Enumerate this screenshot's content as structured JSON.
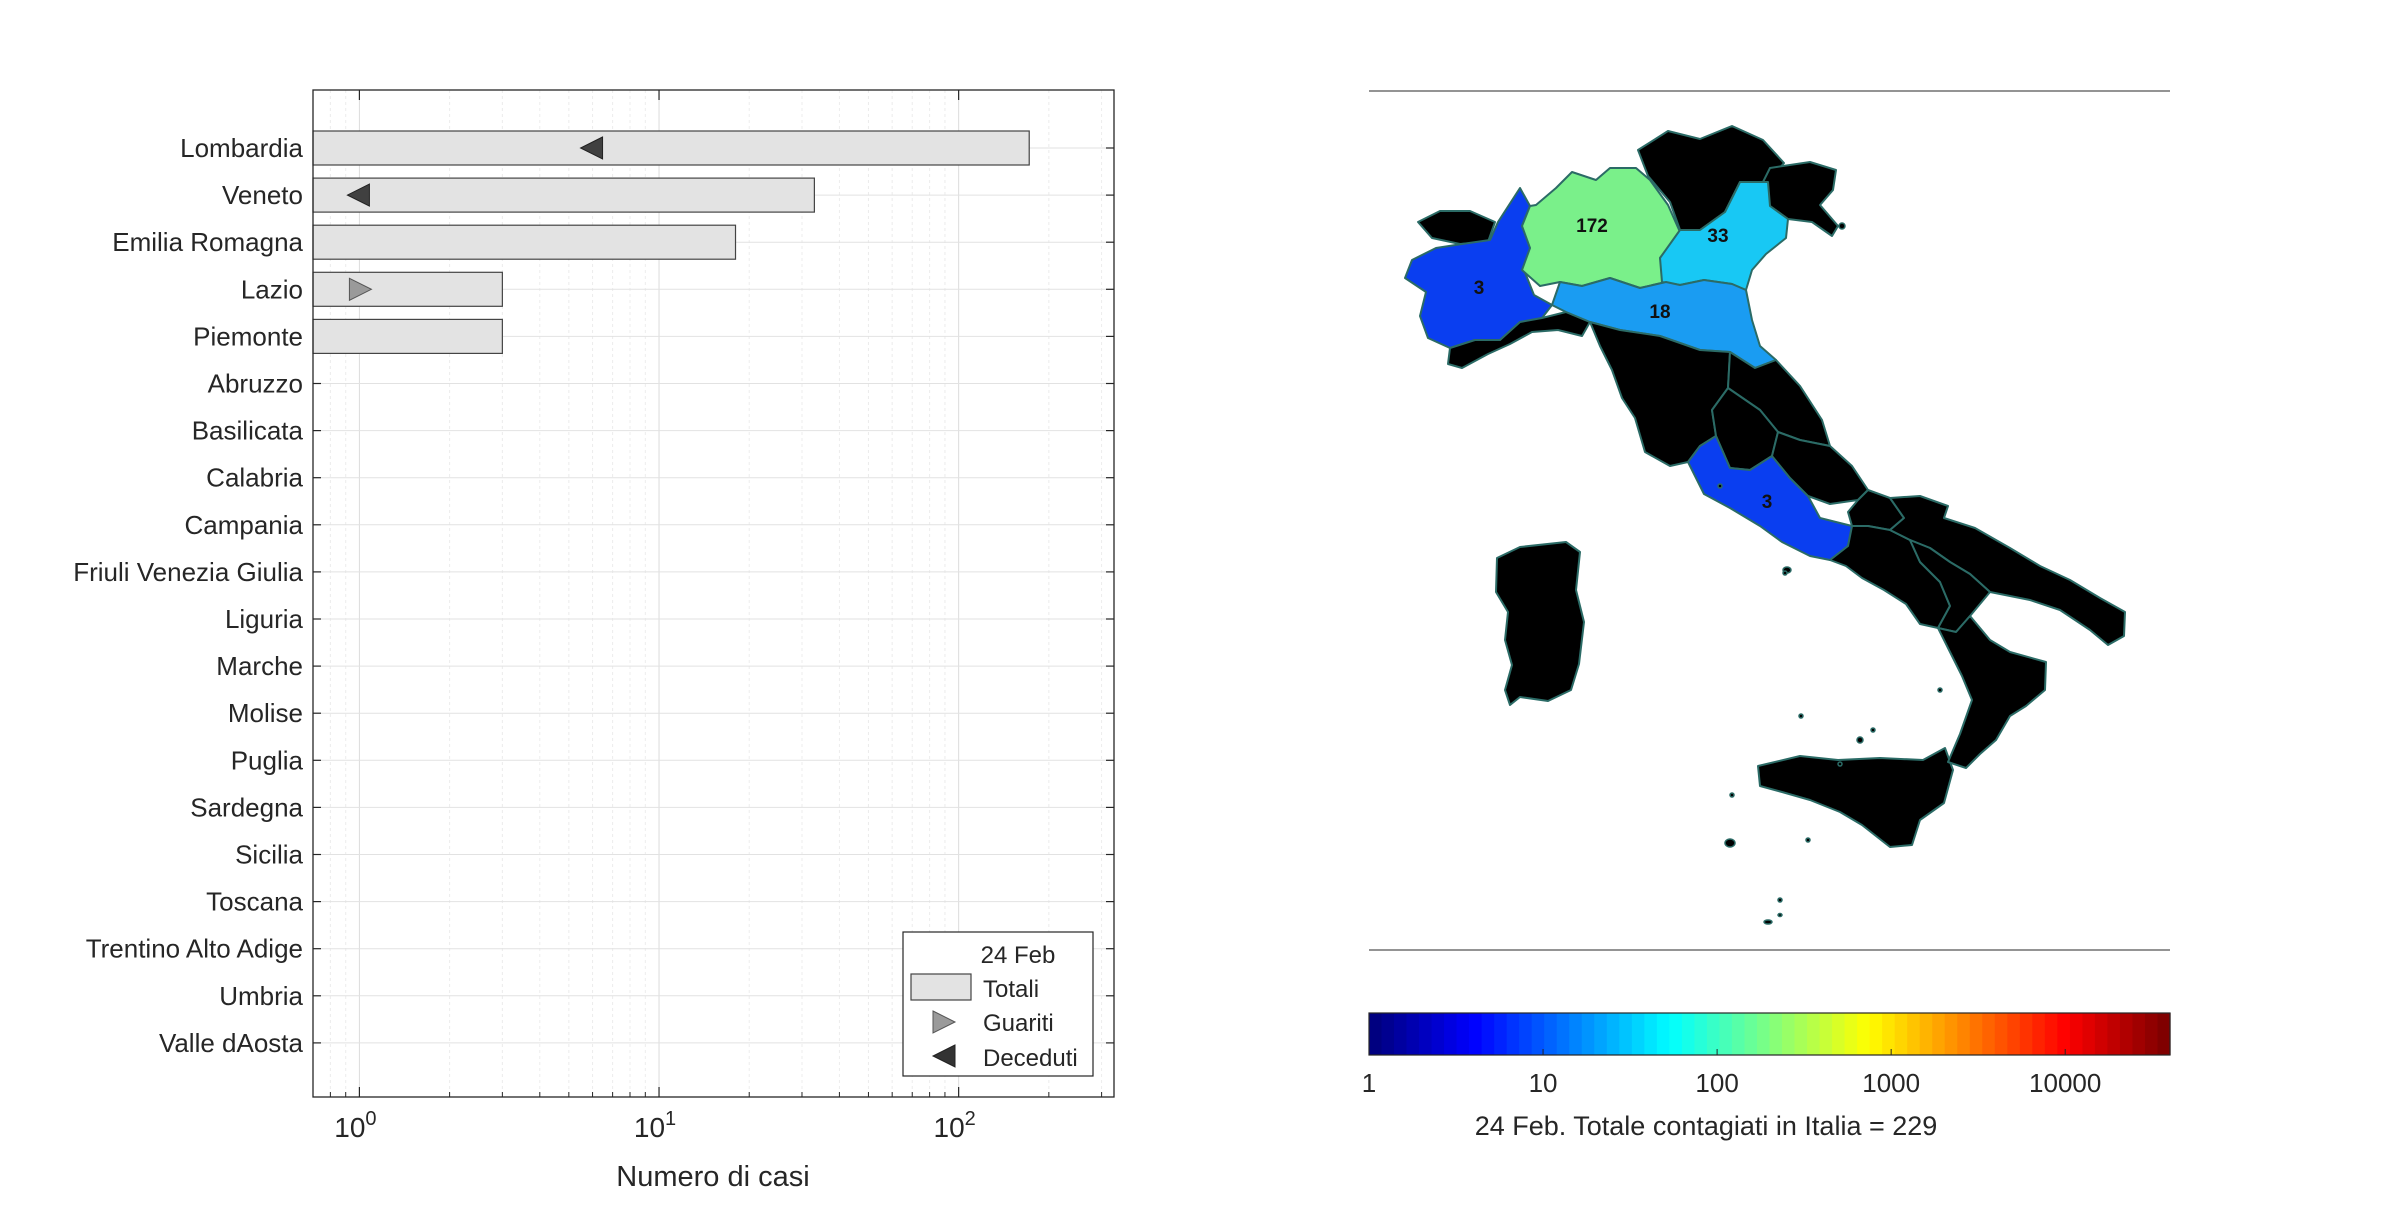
{
  "chart_data": [
    {
      "type": "bar",
      "orientation": "horizontal",
      "xscale": "log",
      "xlim": [
        0.7,
        330
      ],
      "xlabel": "Numero di casi",
      "xticks": [
        {
          "value": 1,
          "base": "10",
          "exp": "0"
        },
        {
          "value": 10,
          "base": "10",
          "exp": "1"
        },
        {
          "value": 100,
          "base": "10",
          "exp": "2"
        }
      ],
      "grid": true,
      "legend_placement": "bottom-right",
      "legend": {
        "title": "24 Feb",
        "entries": [
          "Totali",
          "Guariti",
          "Deceduti"
        ]
      },
      "colors": {
        "bar": "#e3e3e3",
        "bar_edge": "#444444",
        "guariti": "#9a9a9a",
        "deceduti": "#404040"
      },
      "categories": [
        "Lombardia",
        "Veneto",
        "Emilia Romagna",
        "Lazio",
        "Piemonte",
        "Abruzzo",
        "Basilicata",
        "Calabria",
        "Campania",
        "Friuli Venezia Giulia",
        "Liguria",
        "Marche",
        "Molise",
        "Puglia",
        "Sardegna",
        "Sicilia",
        "Toscana",
        "Trentino Alto Adige",
        "Umbria",
        "Valle dAosta"
      ],
      "series": [
        {
          "name": "Totali",
          "values": [
            172,
            33,
            18,
            3,
            3,
            0,
            0,
            0,
            0,
            0,
            0,
            0,
            0,
            0,
            0,
            0,
            0,
            0,
            0,
            0
          ]
        },
        {
          "name": "Guariti",
          "values": [
            0,
            0,
            0,
            1,
            0,
            0,
            0,
            0,
            0,
            0,
            0,
            0,
            0,
            0,
            0,
            0,
            0,
            0,
            0,
            0
          ]
        },
        {
          "name": "Deceduti",
          "values": [
            6,
            1,
            0,
            0,
            0,
            0,
            0,
            0,
            0,
            0,
            0,
            0,
            0,
            0,
            0,
            0,
            0,
            0,
            0,
            0
          ]
        }
      ]
    },
    {
      "type": "heatmap",
      "subtype": "choropleth",
      "colorbar": {
        "scale": "log",
        "range": [
          1,
          40000
        ],
        "ticks": [
          "1",
          "10",
          "100",
          "1000",
          "10000"
        ],
        "tick_values": [
          1,
          10,
          100,
          1000,
          10000
        ],
        "colormap": "jet"
      },
      "title": "24 Feb. Totale contagiati in Italia = 229",
      "regions": [
        {
          "name": "Lombardia",
          "value": 172,
          "label": "172",
          "color": "#7af08a"
        },
        {
          "name": "Veneto",
          "value": 33,
          "label": "33",
          "color": "#18c8f4"
        },
        {
          "name": "Emilia Romagna",
          "value": 18,
          "label": "18",
          "color": "#1a9cf2"
        },
        {
          "name": "Piemonte",
          "value": 3,
          "label": "3",
          "color": "#0a3ef0"
        },
        {
          "name": "Lazio",
          "value": 3,
          "label": "3",
          "color": "#0a3ef0"
        }
      ],
      "zero_color": "#000000",
      "border_color": "#2b6b66"
    }
  ]
}
